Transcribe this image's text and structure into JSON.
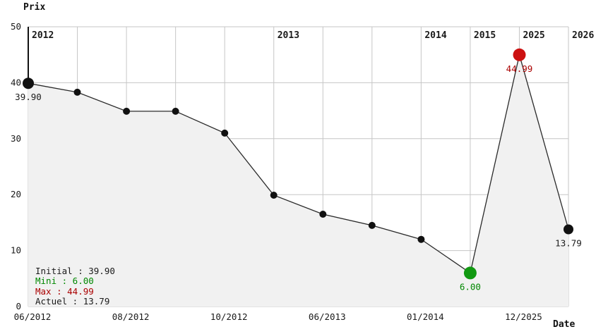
{
  "colors": {
    "background": "#ffffff",
    "grid": "#c6c6c6",
    "fill": "#f1f1f1",
    "line": "#2a2a2a",
    "spine": "#111111",
    "dot_black": "#111111",
    "dot_green": "#119911",
    "dot_red": "#cc1111",
    "label_black": "#1a1a1a",
    "label_green": "#008800",
    "label_red": "#aa0000",
    "tick_text": "#1a1a1a"
  },
  "chart_data": {
    "type": "line",
    "title": "",
    "ylabel": "Prix",
    "xlabel": "Date",
    "ylim": [
      0,
      50
    ],
    "y_ticks": [
      0,
      10,
      20,
      30,
      40,
      50
    ],
    "grid": true,
    "x_gridline_count": 12,
    "area_fill": true,
    "year_labels": [
      {
        "label": "2012",
        "gridline": 0
      },
      {
        "label": "2013",
        "gridline": 5
      },
      {
        "label": "2014",
        "gridline": 8
      },
      {
        "label": "2015",
        "gridline": 9
      },
      {
        "label": "2025",
        "gridline": 10
      },
      {
        "label": "2026",
        "gridline": 11
      }
    ],
    "x_tick_labels": [
      {
        "label": "06/2012",
        "gridline": 0
      },
      {
        "label": "08/2012",
        "gridline": 2
      },
      {
        "label": "10/2012",
        "gridline": 4
      },
      {
        "label": "06/2013",
        "gridline": 6
      },
      {
        "label": "01/2014",
        "gridline": 8
      },
      {
        "label": "12/2025",
        "gridline": 10
      }
    ],
    "points": [
      {
        "gridline": 0,
        "value": 39.9,
        "color": "black",
        "role": "start",
        "label": "39.90"
      },
      {
        "gridline": 1,
        "value": 38.3,
        "color": "black",
        "role": "normal",
        "label": ""
      },
      {
        "gridline": 2,
        "value": 34.9,
        "color": "black",
        "role": "normal",
        "label": ""
      },
      {
        "gridline": 3,
        "value": 34.9,
        "color": "black",
        "role": "normal",
        "label": ""
      },
      {
        "gridline": 4,
        "value": 31.0,
        "color": "black",
        "role": "normal",
        "label": ""
      },
      {
        "gridline": 5,
        "value": 19.9,
        "color": "black",
        "role": "normal",
        "label": ""
      },
      {
        "gridline": 6,
        "value": 16.5,
        "color": "black",
        "role": "normal",
        "label": ""
      },
      {
        "gridline": 7,
        "value": 14.5,
        "color": "black",
        "role": "normal",
        "label": ""
      },
      {
        "gridline": 8,
        "value": 12.0,
        "color": "black",
        "role": "normal",
        "label": ""
      },
      {
        "gridline": 9,
        "value": 6.0,
        "color": "green",
        "role": "min",
        "label": "6.00"
      },
      {
        "gridline": 10,
        "value": 44.99,
        "color": "red",
        "role": "max",
        "label": "44.99"
      },
      {
        "gridline": 11,
        "value": 13.79,
        "color": "black",
        "role": "current",
        "label": "13.79"
      }
    ],
    "legend": [
      {
        "key": "initial",
        "label": "Initial : 39.90",
        "color": "black"
      },
      {
        "key": "mini",
        "label": "Mini : 6.00",
        "color": "green"
      },
      {
        "key": "max",
        "label": "Max : 44.99",
        "color": "red"
      },
      {
        "key": "actuel",
        "label": "Actuel : 13.79",
        "color": "black"
      }
    ]
  }
}
